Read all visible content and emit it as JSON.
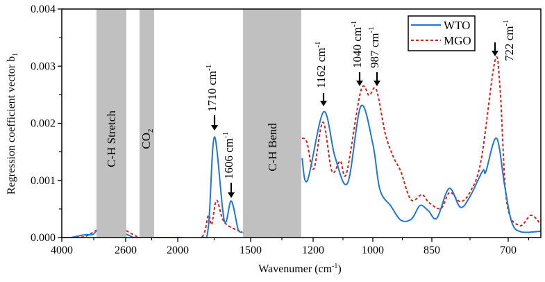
{
  "chart_data": {
    "type": "line",
    "xlabel": "Wavenumer (cm",
    "xlabel_sup": "-1",
    "xlabel_end": ")",
    "ylabel": "Regression coefficient vector b",
    "ylabel_sub": "1",
    "xlim": [
      4000,
      636
    ],
    "ylim": [
      0,
      0.004
    ],
    "x_scale": "piecewise (non-linear)",
    "x_ticks": [
      4000,
      2600,
      2000,
      1500,
      1200,
      1000,
      850,
      700
    ],
    "x_tick_labels": [
      "4000",
      "2600",
      "2000",
      "1500",
      "1200",
      "1000",
      "850",
      "700"
    ],
    "y_ticks": [
      0,
      0.001,
      0.002,
      0.003,
      0.004
    ],
    "y_tick_labels": [
      "0.000",
      "0.001",
      "0.002",
      "0.003",
      "0.004"
    ],
    "grid": false,
    "legend": {
      "placement": "top-right",
      "entries": [
        "WTO",
        "MGO"
      ]
    },
    "bands": [
      {
        "label": "C-H Stretch",
        "range": [
          3239,
          2592
        ]
      },
      {
        "label": "CO",
        "sub": "2",
        "range": [
          2440,
          2272
        ]
      },
      {
        "label": "C-H Bend",
        "range": [
          1552,
          1257
        ]
      }
    ],
    "annotations": [
      {
        "label": "1710 cm",
        "sup": "-1"
      },
      {
        "label": "1606 cm",
        "sup": "-1"
      },
      {
        "label": "1162 cm",
        "sup": "-1"
      },
      {
        "label": "1040 cm",
        "sup": "-1"
      },
      {
        "label": "987 cm",
        "sup": "-1"
      },
      {
        "label": "722 cm",
        "sup": "-1"
      }
    ],
    "series": [
      {
        "name": "WTO",
        "color": "#1f77d4",
        "style": "solid",
        "segments": [
          [
            [
              4000,
              0
            ],
            [
              3800,
              0
            ],
            [
              3680,
              2e-05
            ],
            [
              3483,
              5e-05
            ],
            [
              3330,
              5e-05
            ],
            [
              3239,
              0.00012
            ]
          ],
          [
            [
              2592,
              6e-05
            ],
            [
              2504,
              0
            ],
            [
              2440,
              0
            ]
          ],
          [
            [
              2272,
              0
            ],
            [
              2000,
              0
            ],
            [
              1838,
              0
            ],
            [
              1790,
              0.00018
            ],
            [
              1748,
              0.00176
            ],
            [
              1681,
              0.0003
            ],
            [
              1633,
              0.00064
            ],
            [
              1586,
              0.00015
            ],
            [
              1557,
              0.0001
            ]
          ],
          [
            [
              1253,
              0.00139
            ],
            [
              1227,
              0.001
            ],
            [
              1165,
              0.0022
            ],
            [
              1126,
              0.0014
            ],
            [
              1084,
              0.00096
            ],
            [
              1040,
              0.0023
            ],
            [
              1000,
              0.00164
            ],
            [
              982,
              0.00084
            ],
            [
              954,
              0.00055
            ],
            [
              928,
              0.0003
            ],
            [
              901,
              0.00033
            ],
            [
              880,
              0.00056
            ],
            [
              859,
              0.00047
            ],
            [
              840,
              0.00034
            ],
            [
              816,
              0.00086
            ],
            [
              794,
              0.00053
            ],
            [
              775,
              0.00072
            ],
            [
              750,
              0.00117
            ],
            [
              744,
              0.00115
            ],
            [
              723,
              0.00174
            ],
            [
              707,
              0.00091
            ],
            [
              693,
              0.00027
            ],
            [
              675,
              0.0001
            ],
            [
              636,
              0.00011
            ]
          ]
        ]
      },
      {
        "name": "MGO",
        "color": "#d42020",
        "style": "dashed",
        "segments": [
          [
            [
              4000,
              0
            ],
            [
              3700,
              0
            ],
            [
              3483,
              2e-05
            ],
            [
              3300,
              0.0001
            ],
            [
              3239,
              0.00013
            ]
          ],
          [
            [
              2592,
              0.00012
            ],
            [
              2488,
              3e-05
            ],
            [
              2440,
              0
            ]
          ],
          [
            [
              2272,
              0
            ],
            [
              2000,
              0
            ],
            [
              1838,
              0
            ],
            [
              1790,
              0.00039
            ],
            [
              1767,
              0.00023
            ],
            [
              1733,
              0.00065
            ],
            [
              1681,
              0.00027
            ],
            [
              1567,
              0.0001
            ],
            [
              1557,
              0.0001
            ]
          ],
          [
            [
              1253,
              0.00174
            ],
            [
              1230,
              0.00167
            ],
            [
              1198,
              0.0012
            ],
            [
              1167,
              0.00202
            ],
            [
              1137,
              0.00116
            ],
            [
              1109,
              0.00134
            ],
            [
              1088,
              0.00113
            ],
            [
              1040,
              0.00257
            ],
            [
              1012,
              0.00249
            ],
            [
              991,
              0.00259
            ],
            [
              968,
              0.00181
            ],
            [
              947,
              0.0014
            ],
            [
              929,
              0.00116
            ],
            [
              903,
              0.00066
            ],
            [
              875,
              0.00075
            ],
            [
              857,
              0.00061
            ],
            [
              832,
              0.00051
            ],
            [
              815,
              0.00079
            ],
            [
              794,
              0.00063
            ],
            [
              774,
              0.00081
            ],
            [
              753,
              0.00136
            ],
            [
              726,
              0.00309
            ],
            [
              716,
              0.00261
            ],
            [
              703,
              0.00063
            ],
            [
              678,
              0.00021
            ],
            [
              655,
              0.00039
            ],
            [
              636,
              0.00023
            ]
          ]
        ]
      }
    ]
  }
}
